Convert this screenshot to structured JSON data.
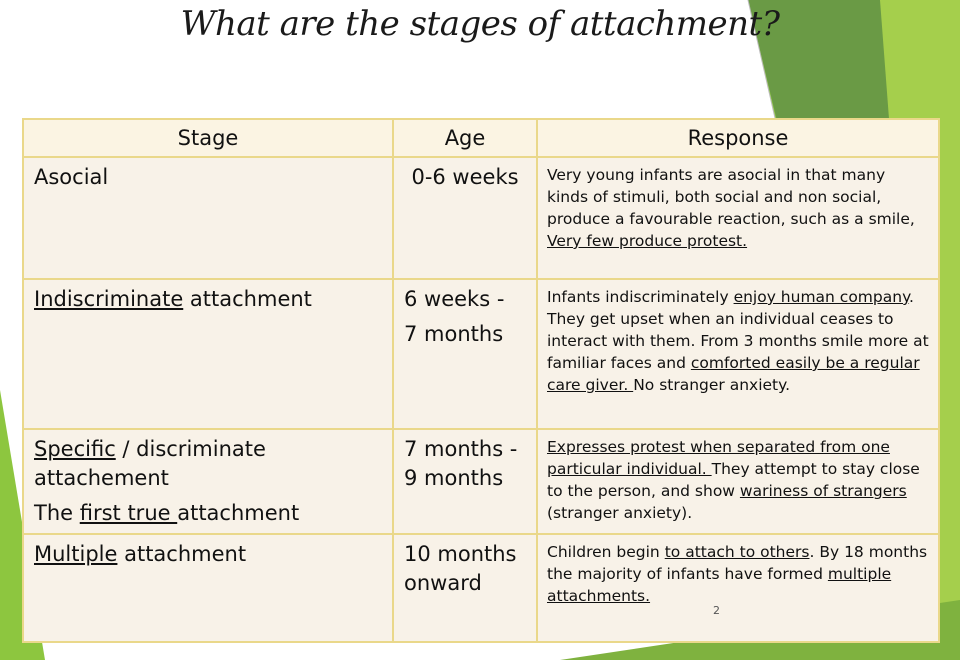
{
  "slide": {
    "title": "What are the stages of attachment?",
    "page_number": "2",
    "accent_colors": [
      "#8dc63f",
      "#6a9a45",
      "#a5cf4c"
    ]
  },
  "table": {
    "headers": [
      "Stage",
      "Age",
      "Response"
    ],
    "rows": [
      {
        "stage": [
          [
            {
              "t": "Asocial",
              "u": false
            }
          ]
        ],
        "age": [
          "0-6 weeks"
        ],
        "response": [
          {
            "t": "Very young infants are asocial in that many kinds of stimuli, both social and non social, produce a favourable reaction, such as a smile, ",
            "u": false
          },
          {
            "t": "Very few produce protest.",
            "u": true
          }
        ]
      },
      {
        "stage": [
          [
            {
              "t": "Indiscriminate",
              "u": true
            },
            {
              "t": " attachment",
              "u": false
            }
          ]
        ],
        "age": [
          "6 weeks -",
          "7 months"
        ],
        "response": [
          {
            "t": "Infants indiscriminately ",
            "u": false
          },
          {
            "t": "enjoy human company",
            "u": true
          },
          {
            "t": ".  They get upset when an individual ceases to interact with them.  From 3 months smile more at familiar faces and ",
            "u": false
          },
          {
            "t": "comforted easily be a regular care giver. ",
            "u": true
          },
          {
            "t": "No stranger anxiety.",
            "u": false
          }
        ]
      },
      {
        "stage": [
          [
            {
              "t": "Specific",
              "u": true
            },
            {
              "t": " / discriminate attachement",
              "u": false
            }
          ],
          [
            {
              "t": "The ",
              "u": false
            },
            {
              "t": "first true ",
              "u": true
            },
            {
              "t": "attachment",
              "u": false
            }
          ]
        ],
        "age": [
          "7 months - 9 months"
        ],
        "response": [
          {
            "t": "Expresses protest when separated from one particular individual.  ",
            "u": true
          },
          {
            "t": "They attempt to stay close to the person, and show ",
            "u": false
          },
          {
            "t": "wariness of strangers",
            "u": true
          },
          {
            "t": " (stranger anxiety).",
            "u": false
          }
        ]
      },
      {
        "stage": [
          [
            {
              "t": "Multiple",
              "u": true
            },
            {
              "t": " attachment",
              "u": false
            }
          ]
        ],
        "age": [
          "10 months onward"
        ],
        "response": [
          {
            "t": "Children begin ",
            "u": false
          },
          {
            "t": "to attach to others",
            "u": true
          },
          {
            "t": ".  By 18 months the majority of infants have formed ",
            "u": false
          },
          {
            "t": "multiple attachments.",
            "u": true
          }
        ]
      }
    ]
  }
}
